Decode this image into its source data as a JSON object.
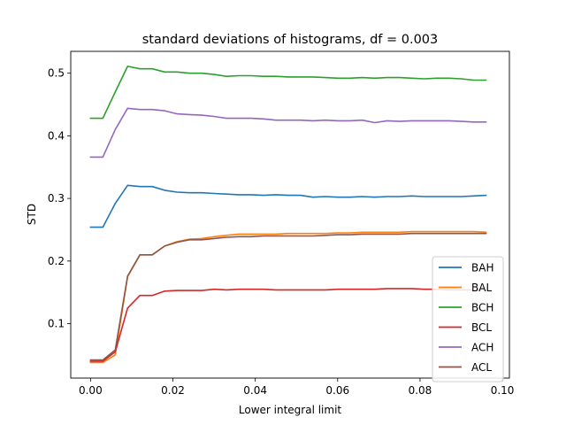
{
  "chart_data": {
    "type": "line",
    "title": "standard deviations of histograms, df = 0.003",
    "xlabel": "Lower integral limit",
    "ylabel": "STD",
    "xlim": [
      -0.0048,
      0.1017
    ],
    "ylim": [
      0.0131,
      0.5349
    ],
    "xticks": [
      0.0,
      0.02,
      0.04,
      0.06,
      0.08,
      0.1
    ],
    "xtick_labels": [
      "0.00",
      "0.02",
      "0.04",
      "0.06",
      "0.08",
      "0.10"
    ],
    "yticks": [
      0.1,
      0.2,
      0.3,
      0.4,
      0.5
    ],
    "ytick_labels": [
      "0.1",
      "0.2",
      "0.3",
      "0.4",
      "0.5"
    ],
    "grid": false,
    "legend_position": "lower-right",
    "x": [
      0.0,
      0.003,
      0.006,
      0.009,
      0.012,
      0.015,
      0.018,
      0.021,
      0.024,
      0.027,
      0.03,
      0.033,
      0.036,
      0.039,
      0.042,
      0.045,
      0.048,
      0.051,
      0.054,
      0.057,
      0.06,
      0.063,
      0.066,
      0.069,
      0.072,
      0.075,
      0.078,
      0.081,
      0.084,
      0.087,
      0.09,
      0.093,
      0.096
    ],
    "series": [
      {
        "name": "BAH",
        "color": "#1f77b4",
        "values": [
          0.254,
          0.254,
          0.292,
          0.321,
          0.319,
          0.319,
          0.313,
          0.31,
          0.309,
          0.309,
          0.308,
          0.307,
          0.306,
          0.306,
          0.305,
          0.306,
          0.305,
          0.305,
          0.302,
          0.303,
          0.302,
          0.302,
          0.303,
          0.302,
          0.303,
          0.303,
          0.304,
          0.303,
          0.303,
          0.303,
          0.303,
          0.304,
          0.305
        ]
      },
      {
        "name": "BAL",
        "color": "#ff7f0e",
        "values": [
          0.038,
          0.038,
          0.05,
          0.175,
          0.21,
          0.21,
          0.224,
          0.231,
          0.235,
          0.236,
          0.239,
          0.241,
          0.243,
          0.243,
          0.243,
          0.243,
          0.244,
          0.244,
          0.244,
          0.244,
          0.245,
          0.245,
          0.246,
          0.246,
          0.246,
          0.246,
          0.247,
          0.247,
          0.247,
          0.247,
          0.247,
          0.247,
          0.246
        ]
      },
      {
        "name": "BCH",
        "color": "#2ca02c",
        "values": [
          0.428,
          0.428,
          0.47,
          0.511,
          0.507,
          0.507,
          0.502,
          0.502,
          0.5,
          0.5,
          0.498,
          0.495,
          0.496,
          0.496,
          0.495,
          0.495,
          0.494,
          0.494,
          0.494,
          0.493,
          0.492,
          0.492,
          0.493,
          0.492,
          0.493,
          0.493,
          0.492,
          0.491,
          0.492,
          0.492,
          0.491,
          0.489,
          0.489
        ]
      },
      {
        "name": "BCL",
        "color": "#d62728",
        "values": [
          0.04,
          0.04,
          0.055,
          0.125,
          0.145,
          0.145,
          0.152,
          0.153,
          0.153,
          0.153,
          0.155,
          0.154,
          0.155,
          0.155,
          0.155,
          0.154,
          0.154,
          0.154,
          0.154,
          0.154,
          0.155,
          0.155,
          0.155,
          0.155,
          0.156,
          0.156,
          0.156,
          0.155,
          0.155,
          0.154,
          0.154,
          0.154,
          0.154
        ]
      },
      {
        "name": "ACH",
        "color": "#9467bd",
        "values": [
          0.366,
          0.366,
          0.41,
          0.444,
          0.442,
          0.442,
          0.44,
          0.435,
          0.434,
          0.433,
          0.431,
          0.428,
          0.428,
          0.428,
          0.427,
          0.425,
          0.425,
          0.425,
          0.424,
          0.425,
          0.424,
          0.424,
          0.425,
          0.421,
          0.424,
          0.423,
          0.424,
          0.424,
          0.424,
          0.424,
          0.423,
          0.422,
          0.422
        ]
      },
      {
        "name": "ACL",
        "color": "#8c564b",
        "values": [
          0.042,
          0.042,
          0.058,
          0.176,
          0.21,
          0.21,
          0.224,
          0.23,
          0.234,
          0.234,
          0.236,
          0.238,
          0.239,
          0.239,
          0.24,
          0.24,
          0.24,
          0.24,
          0.24,
          0.241,
          0.242,
          0.242,
          0.243,
          0.243,
          0.243,
          0.243,
          0.244,
          0.244,
          0.244,
          0.244,
          0.244,
          0.244,
          0.244
        ]
      }
    ]
  }
}
